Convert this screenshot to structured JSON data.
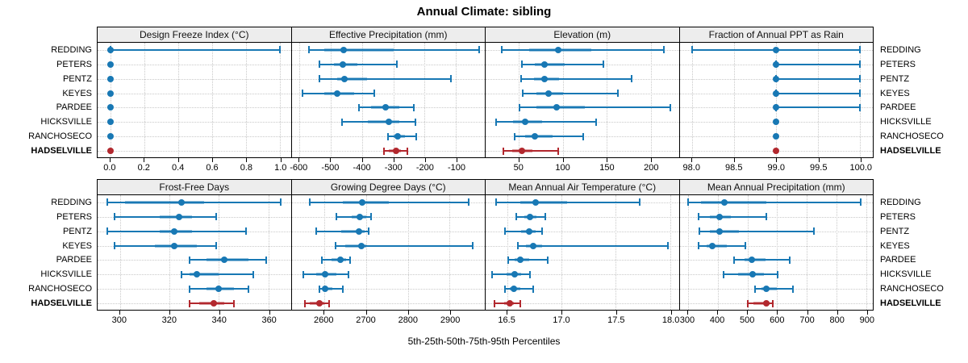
{
  "title": "Annual Climate: sibling",
  "caption": "5th-25th-50th-75th-95th Percentiles",
  "locations": [
    "REDDING",
    "PETERS",
    "PENTZ",
    "KEYES",
    "PARDEE",
    "HICKSVILLE",
    "RANCHOSECO",
    "HADSELVILLE"
  ],
  "highlight_location": "HADSELVILLE",
  "colors": {
    "series_normal": "#1878b4",
    "series_normal_band": "rgba(24,120,180,0.45)",
    "series_highlight": "#b2282e",
    "series_highlight_band": "rgba(178,40,46,0.45)",
    "strip_background": "#ededed",
    "gridline": "#c9c9c9"
  },
  "chart_data": [
    {
      "type": "dotplot-interval",
      "title": "Design Freeze Index (°C)",
      "grid_row": 0,
      "grid_col": 0,
      "axis_range": [
        -0.075,
        1.065
      ],
      "tick_values": [
        0.0,
        0.2,
        0.4,
        0.6,
        0.8,
        1.0
      ],
      "tick_labels": [
        "0.0",
        "0.2",
        "0.4",
        "0.6",
        "0.8",
        "1.0"
      ],
      "series": [
        {
          "location": "REDDING",
          "p": [
            0.0,
            0.0,
            0.0,
            0.0,
            1.0
          ]
        },
        {
          "location": "PETERS",
          "p": [
            0.0,
            0.0,
            0.0,
            0.0,
            0.0
          ]
        },
        {
          "location": "PENTZ",
          "p": [
            0.0,
            0.0,
            0.0,
            0.0,
            0.0
          ]
        },
        {
          "location": "KEYES",
          "p": [
            0.0,
            0.0,
            0.0,
            0.0,
            0.0
          ]
        },
        {
          "location": "PARDEE",
          "p": [
            0.0,
            0.0,
            0.0,
            0.0,
            0.0
          ]
        },
        {
          "location": "HICKSVILLE",
          "p": [
            0.0,
            0.0,
            0.0,
            0.0,
            0.0
          ]
        },
        {
          "location": "RANCHOSECO",
          "p": [
            0.0,
            0.0,
            0.0,
            0.0,
            0.0
          ]
        },
        {
          "location": "HADSELVILLE",
          "p": [
            0.0,
            0.0,
            0.0,
            0.0,
            0.0
          ]
        }
      ]
    },
    {
      "type": "dotplot-interval",
      "title": "Effective Precipitation (mm)",
      "grid_row": 0,
      "grid_col": 1,
      "axis_range": [
        -625,
        -8
      ],
      "tick_values": [
        -600,
        -500,
        -400,
        -300,
        -200,
        -100
      ],
      "tick_labels": [
        "-600",
        "-500",
        "-400",
        "-300",
        "-200",
        "-100"
      ],
      "series": [
        {
          "location": "REDDING",
          "p": [
            -570,
            -520,
            -460,
            -300,
            -25
          ]
        },
        {
          "location": "PETERS",
          "p": [
            -535,
            -490,
            -462,
            -415,
            -290
          ]
        },
        {
          "location": "PENTZ",
          "p": [
            -535,
            -480,
            -455,
            -385,
            -115
          ]
        },
        {
          "location": "KEYES",
          "p": [
            -590,
            -520,
            -480,
            -425,
            -360
          ]
        },
        {
          "location": "PARDEE",
          "p": [
            -410,
            -372,
            -325,
            -282,
            -235
          ]
        },
        {
          "location": "HICKSVILLE",
          "p": [
            -465,
            -382,
            -315,
            -280,
            -230
          ]
        },
        {
          "location": "RANCHOSECO",
          "p": [
            -318,
            -300,
            -285,
            -262,
            -228
          ]
        },
        {
          "location": "HADSELVILLE",
          "p": [
            -330,
            -315,
            -292,
            -275,
            -255
          ]
        }
      ]
    },
    {
      "type": "dotplot-interval",
      "title": "Elevation (m)",
      "grid_row": 0,
      "grid_col": 2,
      "axis_range": [
        12,
        232
      ],
      "tick_values": [
        50,
        100,
        150,
        200
      ],
      "tick_labels": [
        "50",
        "100",
        "150",
        "200"
      ],
      "series": [
        {
          "location": "REDDING",
          "p": [
            30,
            62,
            95,
            132,
            215
          ]
        },
        {
          "location": "PETERS",
          "p": [
            53,
            68,
            79,
            102,
            146
          ]
        },
        {
          "location": "PENTZ",
          "p": [
            52,
            67,
            79,
            96,
            178
          ]
        },
        {
          "location": "KEYES",
          "p": [
            54,
            70,
            84,
            100,
            163
          ]
        },
        {
          "location": "PARDEE",
          "p": [
            51,
            70,
            93,
            125,
            222
          ]
        },
        {
          "location": "HICKSVILLE",
          "p": [
            24,
            43,
            57,
            76,
            138
          ]
        },
        {
          "location": "RANCHOSECO",
          "p": [
            45,
            57,
            68,
            88,
            123
          ]
        },
        {
          "location": "HADSELVILLE",
          "p": [
            32,
            42,
            53,
            65,
            95
          ]
        }
      ]
    },
    {
      "type": "dotplot-interval",
      "title": "Fraction of Annual PPT as Rain",
      "grid_row": 0,
      "grid_col": 3,
      "axis_range": [
        97.85,
        100.15
      ],
      "tick_values": [
        98.0,
        98.5,
        99.0,
        99.5,
        100.0
      ],
      "tick_labels": [
        "98.0",
        "98.5",
        "99.0",
        "99.5",
        "100.0"
      ],
      "series": [
        {
          "location": "REDDING",
          "p": [
            98.0,
            99.0,
            99.0,
            99.0,
            100.0
          ]
        },
        {
          "location": "PETERS",
          "p": [
            99.0,
            99.0,
            99.0,
            99.0,
            100.0
          ]
        },
        {
          "location": "PENTZ",
          "p": [
            99.0,
            99.0,
            99.0,
            99.0,
            100.0
          ]
        },
        {
          "location": "KEYES",
          "p": [
            99.0,
            99.0,
            99.0,
            99.0,
            100.0
          ]
        },
        {
          "location": "PARDEE",
          "p": [
            99.0,
            99.0,
            99.0,
            99.0,
            100.0
          ]
        },
        {
          "location": "HICKSVILLE",
          "p": [
            99.0,
            99.0,
            99.0,
            99.0,
            99.0
          ]
        },
        {
          "location": "RANCHOSECO",
          "p": [
            99.0,
            99.0,
            99.0,
            99.0,
            99.0
          ]
        },
        {
          "location": "HADSELVILLE",
          "p": [
            99.0,
            99.0,
            99.0,
            99.0,
            99.0
          ]
        }
      ]
    },
    {
      "type": "dotplot-interval",
      "title": "Frost-Free Days",
      "grid_row": 1,
      "grid_col": 0,
      "axis_range": [
        291,
        369
      ],
      "tick_values": [
        300,
        320,
        340,
        360
      ],
      "tick_labels": [
        "300",
        "320",
        "340",
        "360"
      ],
      "series": [
        {
          "location": "REDDING",
          "p": [
            295,
            302,
            325,
            334,
            365
          ]
        },
        {
          "location": "PETERS",
          "p": [
            298,
            316,
            324,
            329,
            339
          ]
        },
        {
          "location": "PENTZ",
          "p": [
            295,
            316,
            322,
            329,
            351
          ]
        },
        {
          "location": "KEYES",
          "p": [
            298,
            314,
            322,
            331,
            339
          ]
        },
        {
          "location": "PARDEE",
          "p": [
            328,
            335,
            342,
            352,
            359
          ]
        },
        {
          "location": "HICKSVILLE",
          "p": [
            325,
            328,
            331,
            340,
            354
          ]
        },
        {
          "location": "RANCHOSECO",
          "p": [
            328,
            335,
            340,
            346,
            352
          ]
        },
        {
          "location": "HADSELVILLE",
          "p": [
            328,
            332,
            338,
            342,
            346
          ]
        }
      ]
    },
    {
      "type": "dotplot-interval",
      "title": "Growing Degree Days (°C)",
      "grid_row": 1,
      "grid_col": 1,
      "axis_range": [
        2522,
        2984
      ],
      "tick_values": [
        2600,
        2700,
        2800,
        2900
      ],
      "tick_labels": [
        "2600",
        "2700",
        "2800",
        "2900"
      ],
      "series": [
        {
          "location": "REDDING",
          "p": [
            2565,
            2645,
            2690,
            2755,
            2945
          ]
        },
        {
          "location": "PETERS",
          "p": [
            2630,
            2665,
            2685,
            2700,
            2712
          ]
        },
        {
          "location": "PENTZ",
          "p": [
            2580,
            2640,
            2683,
            2697,
            2707
          ]
        },
        {
          "location": "KEYES",
          "p": [
            2628,
            2650,
            2688,
            2700,
            2955
          ]
        },
        {
          "location": "PARDEE",
          "p": [
            2595,
            2618,
            2638,
            2652,
            2662
          ]
        },
        {
          "location": "HICKSVILLE",
          "p": [
            2550,
            2580,
            2603,
            2630,
            2658
          ]
        },
        {
          "location": "RANCHOSECO",
          "p": [
            2588,
            2597,
            2603,
            2620,
            2645
          ]
        },
        {
          "location": "HADSELVILLE",
          "p": [
            2553,
            2565,
            2588,
            2600,
            2612
          ]
        }
      ]
    },
    {
      "type": "dotplot-interval",
      "title": "Mean Annual Air Temperature (°C)",
      "grid_row": 1,
      "grid_col": 2,
      "axis_range": [
        16.3,
        18.08
      ],
      "tick_values": [
        16.5,
        17.0,
        17.5,
        18.0
      ],
      "tick_labels": [
        "16.5",
        "17.0",
        "17.5",
        "18.0"
      ],
      "series": [
        {
          "location": "REDDING",
          "p": [
            16.4,
            16.62,
            16.76,
            17.05,
            17.72
          ]
        },
        {
          "location": "PETERS",
          "p": [
            16.58,
            16.66,
            16.71,
            16.77,
            16.85
          ]
        },
        {
          "location": "PENTZ",
          "p": [
            16.48,
            16.63,
            16.7,
            16.76,
            16.82
          ]
        },
        {
          "location": "KEYES",
          "p": [
            16.6,
            16.67,
            16.74,
            16.82,
            17.98
          ]
        },
        {
          "location": "PARDEE",
          "p": [
            16.51,
            16.57,
            16.62,
            16.7,
            16.87
          ]
        },
        {
          "location": "HICKSVILLE",
          "p": [
            16.36,
            16.49,
            16.57,
            16.63,
            16.71
          ]
        },
        {
          "location": "RANCHOSECO",
          "p": [
            16.48,
            16.52,
            16.56,
            16.62,
            16.74
          ]
        },
        {
          "location": "HADSELVILLE",
          "p": [
            16.38,
            16.47,
            16.52,
            16.56,
            16.62
          ]
        }
      ]
    },
    {
      "type": "dotplot-interval",
      "title": "Mean Annual Precipitation (mm)",
      "grid_row": 1,
      "grid_col": 3,
      "axis_range": [
        272,
        922
      ],
      "tick_values": [
        300,
        400,
        500,
        600,
        700,
        800,
        900
      ],
      "tick_labels": [
        "300",
        "400",
        "500",
        "600",
        "700",
        "800",
        "900"
      ],
      "series": [
        {
          "location": "REDDING",
          "p": [
            300,
            345,
            423,
            565,
            880
          ]
        },
        {
          "location": "PETERS",
          "p": [
            335,
            375,
            405,
            445,
            565
          ]
        },
        {
          "location": "PENTZ",
          "p": [
            338,
            375,
            407,
            472,
            725
          ]
        },
        {
          "location": "KEYES",
          "p": [
            335,
            362,
            383,
            430,
            493
          ]
        },
        {
          "location": "PARDEE",
          "p": [
            455,
            490,
            515,
            560,
            643
          ]
        },
        {
          "location": "HICKSVILLE",
          "p": [
            420,
            470,
            517,
            555,
            603
          ]
        },
        {
          "location": "RANCHOSECO",
          "p": [
            525,
            548,
            565,
            600,
            653
          ]
        },
        {
          "location": "HADSELVILLE",
          "p": [
            500,
            520,
            563,
            575,
            585
          ]
        }
      ]
    }
  ]
}
